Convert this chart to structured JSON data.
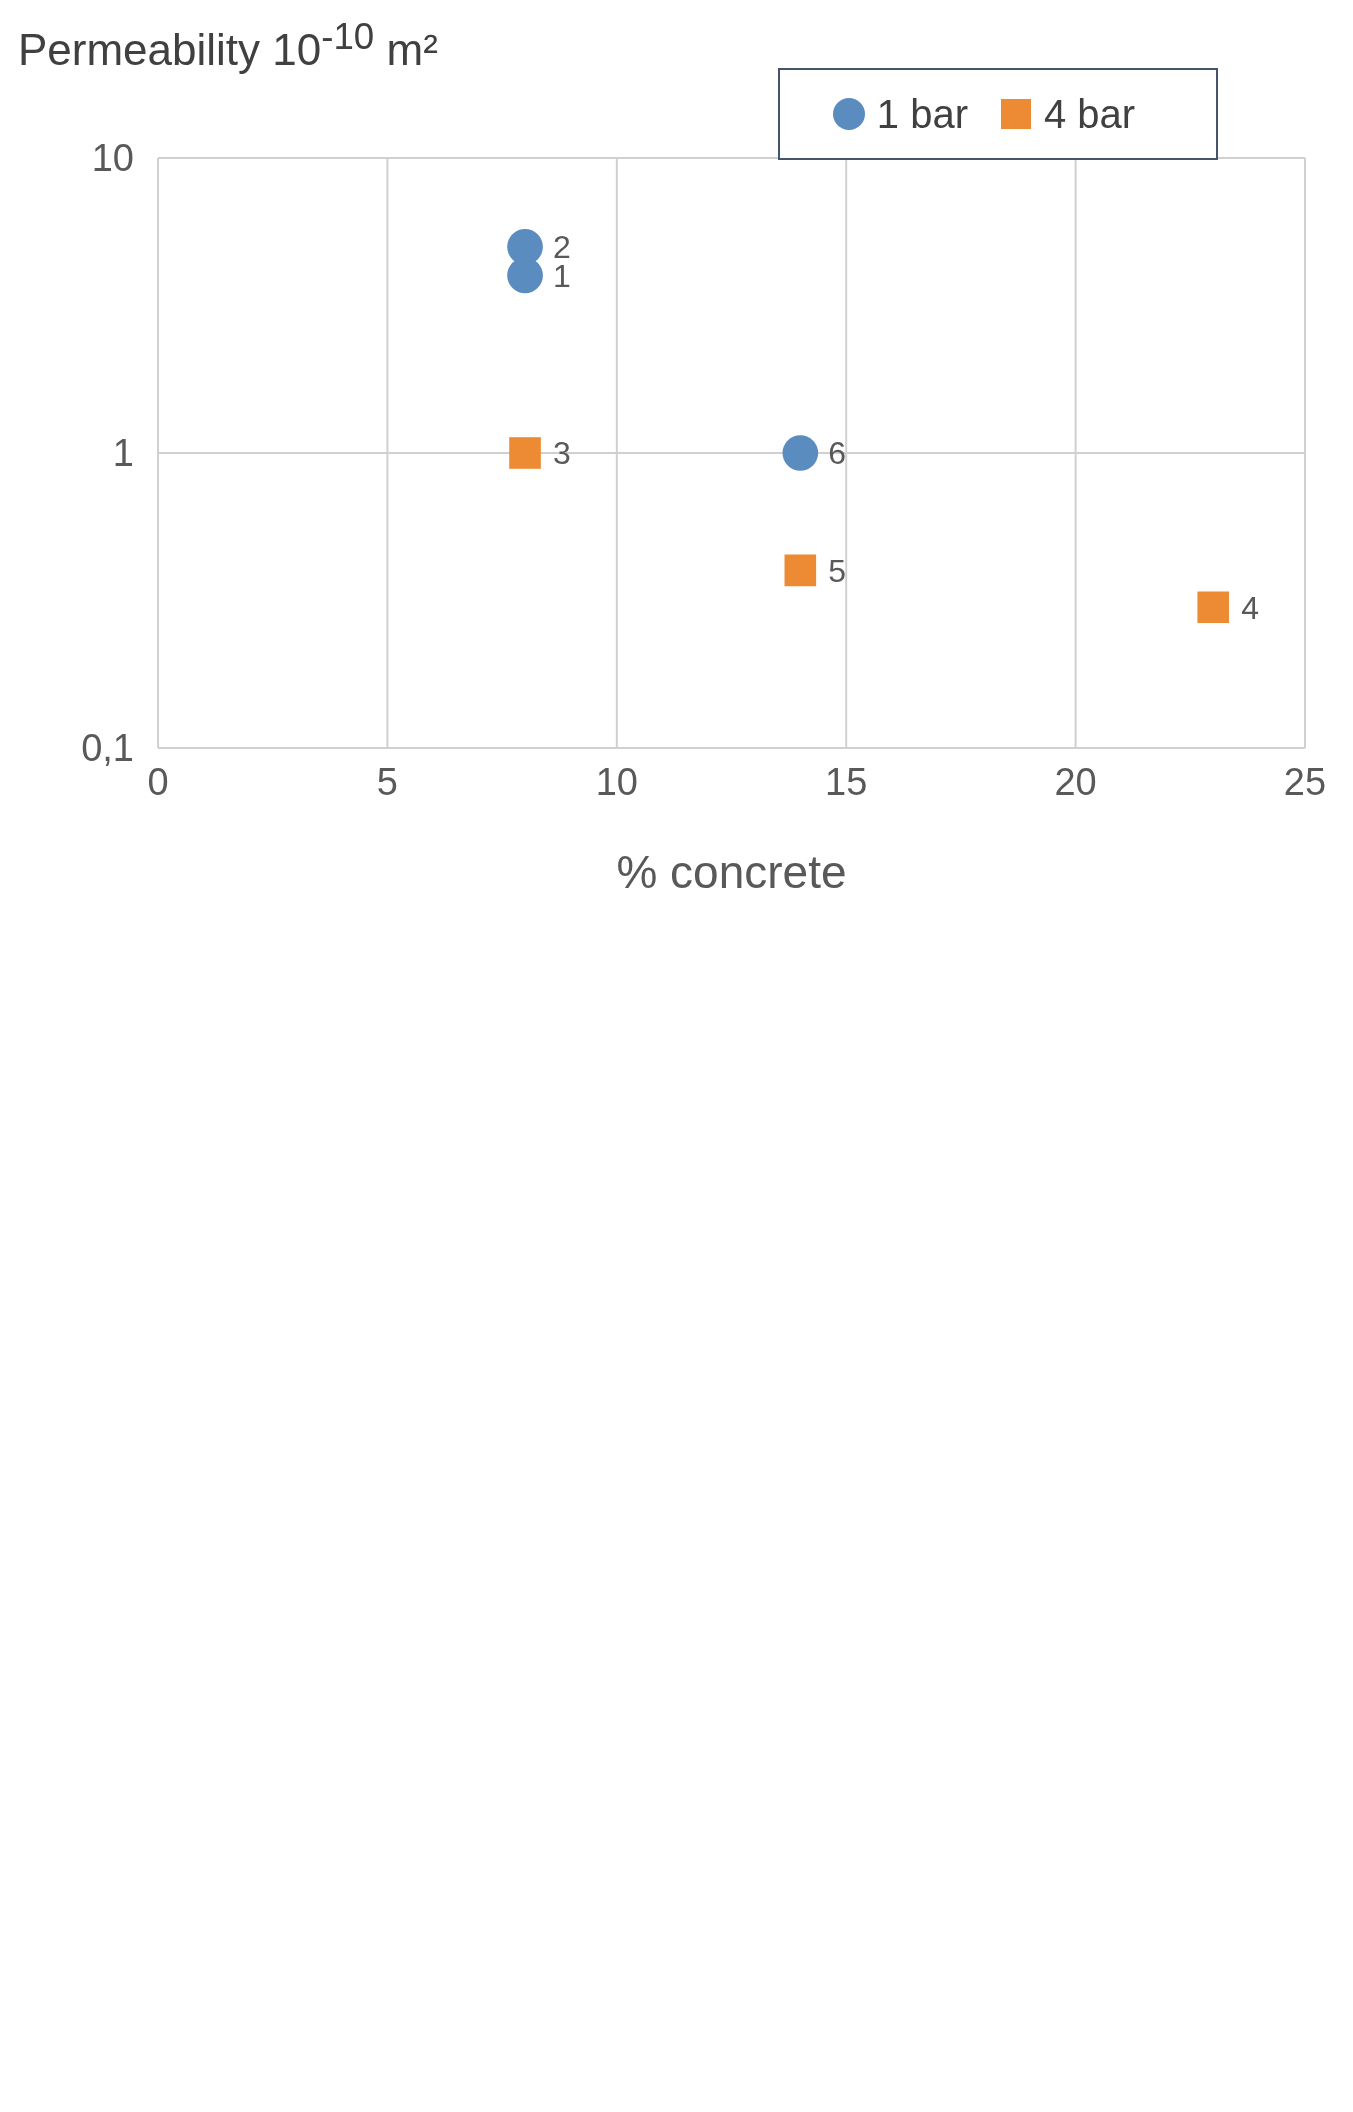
{
  "chart_data": {
    "type": "scatter",
    "ylabel": "Permeability 10$^{-10}$ m²",
    "xlabel": "% concrete",
    "xlim": [
      0,
      25
    ],
    "xticks": [
      0,
      5,
      10,
      15,
      20,
      25
    ],
    "ylim": [
      0.1,
      10
    ],
    "yticks": [
      {
        "value": 0.1,
        "label": "0,1"
      },
      1,
      10
    ],
    "log": "y",
    "grid": true,
    "legend": "top right",
    "annotations": [
      {
        "text": "1",
        "x": 8,
        "y": 4
      },
      {
        "text": "2",
        "x": 8,
        "y": 5
      },
      {
        "text": "6",
        "x": 14,
        "y": 1
      },
      {
        "text": "3",
        "x": 8,
        "y": 1
      },
      {
        "text": "5",
        "x": 14,
        "y": 0.4
      },
      {
        "text": "4",
        "x": 23,
        "y": 0.3
      }
    ],
    "series": [
      {
        "name": "1 bar",
        "color": "#5b8cc0",
        "marker": "circle",
        "x": [
          8,
          8,
          14
        ],
        "values": [
          4,
          5,
          1
        ]
      },
      {
        "name": "4 bar",
        "color": "#ed8a34",
        "marker": "square",
        "x": [
          8,
          14,
          23
        ],
        "values": [
          1,
          0.4,
          0.3
        ]
      }
    ]
  }
}
